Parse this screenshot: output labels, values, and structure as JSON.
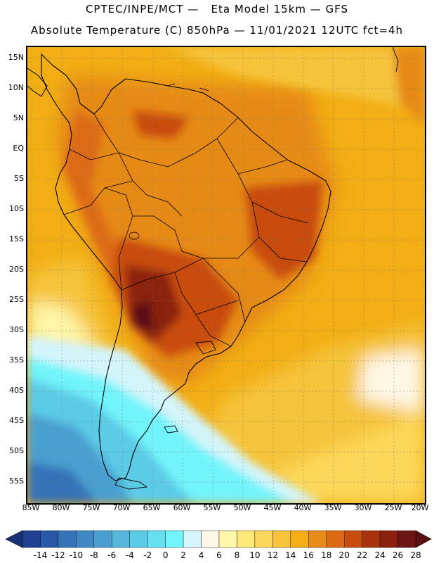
{
  "header": {
    "line1": "CPTEC/INPE/MCT —   Eta Model 15km — GFS",
    "line2": "Absolute Temperature (C) 850hPa — 11/01/2021 12UTC fct=4h"
  },
  "axes": {
    "lat_labels": [
      "15N",
      "10N",
      "5N",
      "EQ",
      "5S",
      "10S",
      "15S",
      "20S",
      "25S",
      "30S",
      "35S",
      "40S",
      "45S",
      "50S",
      "55S"
    ],
    "lon_labels": [
      "85W",
      "80W",
      "75W",
      "70W",
      "65W",
      "60W",
      "55W",
      "50W",
      "45W",
      "40W",
      "35W",
      "30W",
      "25W",
      "20W"
    ]
  },
  "colorbar": {
    "ticks": [
      "-14",
      "-12",
      "-10",
      "-8",
      "-6",
      "-4",
      "-2",
      "0",
      "2",
      "4",
      "6",
      "8",
      "10",
      "12",
      "14",
      "16",
      "18",
      "20",
      "22",
      "24",
      "26",
      "28"
    ],
    "colors": [
      "#1f3f8f",
      "#2a58a8",
      "#3572b8",
      "#4088c4",
      "#4a9fd0",
      "#56b6dc",
      "#5ccbe6",
      "#66e0f0",
      "#72f4fb",
      "#d3f5fb",
      "#fff8e6",
      "#fff6a8",
      "#ffe97a",
      "#fcd85a",
      "#f6c43a",
      "#f2ae14",
      "#e68a18",
      "#dc6a12",
      "#c84c0c",
      "#a8320e",
      "#8a2010",
      "#6e1414"
    ],
    "low_color": "#1a3178",
    "high_color": "#5a0f12"
  }
}
